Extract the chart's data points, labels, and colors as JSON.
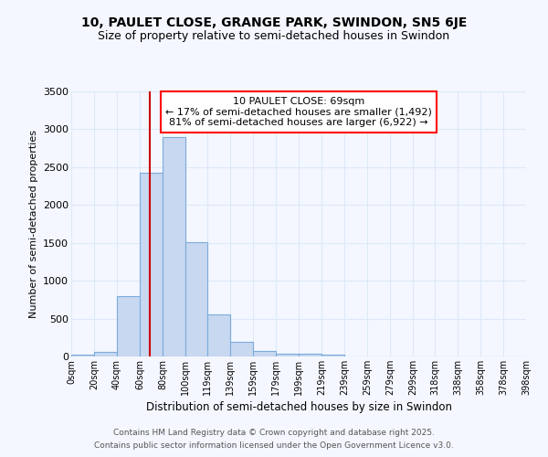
{
  "title_line1": "10, PAULET CLOSE, GRANGE PARK, SWINDON, SN5 6JE",
  "title_line2": "Size of property relative to semi-detached houses in Swindon",
  "xlabel": "Distribution of semi-detached houses by size in Swindon",
  "ylabel": "Number of semi-detached properties",
  "property_size": 69,
  "annotation_title": "10 PAULET CLOSE: 69sqm",
  "annotation_line2": "← 17% of semi-detached houses are smaller (1,492)",
  "annotation_line3": "81% of semi-detached houses are larger (6,922) →",
  "bar_edges": [
    0,
    20,
    40,
    60,
    80,
    100,
    119,
    139,
    159,
    179,
    199,
    219,
    239,
    259,
    279,
    299,
    318,
    338,
    358,
    378,
    398
  ],
  "bar_heights": [
    25,
    55,
    800,
    2420,
    2900,
    1510,
    555,
    190,
    75,
    40,
    40,
    30,
    0,
    0,
    0,
    0,
    0,
    0,
    0,
    0
  ],
  "bar_color": "#c8d8f0",
  "bar_edgecolor": "#7aacdc",
  "vline_color": "#cc0000",
  "vline_x": 69,
  "ylim": [
    0,
    3500
  ],
  "yticks": [
    0,
    500,
    1000,
    1500,
    2000,
    2500,
    3000,
    3500
  ],
  "xtick_labels": [
    "0sqm",
    "20sqm",
    "40sqm",
    "60sqm",
    "80sqm",
    "100sqm",
    "119sqm",
    "139sqm",
    "159sqm",
    "179sqm",
    "199sqm",
    "219sqm",
    "239sqm",
    "259sqm",
    "279sqm",
    "299sqm",
    "318sqm",
    "338sqm",
    "358sqm",
    "378sqm",
    "398sqm"
  ],
  "footnote_line1": "Contains HM Land Registry data © Crown copyright and database right 2025.",
  "footnote_line2": "Contains public sector information licensed under the Open Government Licence v3.0.",
  "background_color": "#f4f7ff",
  "grid_color": "#dde8f8",
  "plot_bg_color": "#f4f7ff"
}
